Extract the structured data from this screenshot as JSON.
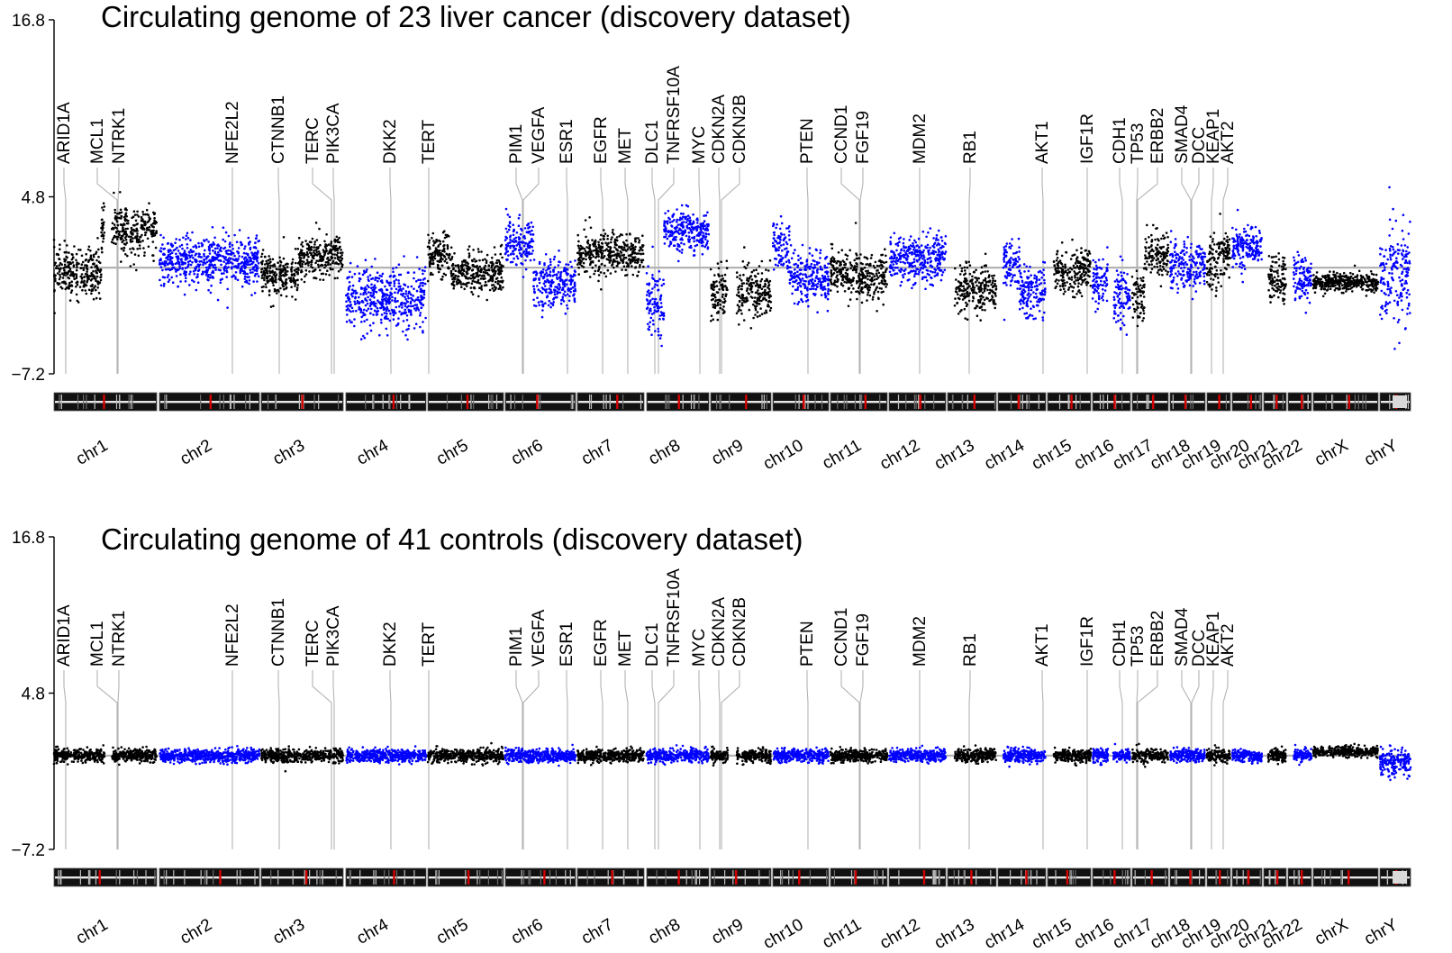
{
  "chart_data": [
    {
      "type": "scatter",
      "panel": "top",
      "title": "Circulating genome of 23 liver cancer (discovery dataset)",
      "ylim": [
        -7.2,
        16.8
      ],
      "yticks": [
        "16.8",
        "4.8",
        "−7.2"
      ],
      "baseline": 0,
      "chromosomes": [
        {
          "name": "chr1",
          "segments": [
            {
              "len": 0.46,
              "level": -0.3,
              "sd": 0.8
            },
            {
              "len": 0.54,
              "level": 2.5,
              "sd": 0.8
            }
          ]
        },
        {
          "name": "chr2",
          "segments": [
            {
              "len": 1.0,
              "level": 0.5,
              "sd": 0.8
            }
          ]
        },
        {
          "name": "chr3",
          "segments": [
            {
              "len": 0.45,
              "level": -0.4,
              "sd": 0.7
            },
            {
              "len": 0.55,
              "level": 0.7,
              "sd": 0.7
            }
          ]
        },
        {
          "name": "chr4",
          "segments": [
            {
              "len": 1.0,
              "level": -2.2,
              "sd": 1.0
            }
          ]
        },
        {
          "name": "chr5",
          "segments": [
            {
              "len": 0.3,
              "level": 0.9,
              "sd": 0.7
            },
            {
              "len": 0.7,
              "level": -0.3,
              "sd": 0.7
            }
          ]
        },
        {
          "name": "chr6",
          "segments": [
            {
              "len": 0.4,
              "level": 1.6,
              "sd": 0.8
            },
            {
              "len": 0.6,
              "level": -1.1,
              "sd": 0.8
            }
          ]
        },
        {
          "name": "chr7",
          "segments": [
            {
              "len": 1.0,
              "level": 0.9,
              "sd": 0.7
            }
          ]
        },
        {
          "name": "chr8",
          "segments": [
            {
              "len": 0.28,
              "level": -2.4,
              "sd": 1.2
            },
            {
              "len": 0.72,
              "level": 2.5,
              "sd": 0.7
            }
          ]
        },
        {
          "name": "chr9",
          "segments": [
            {
              "len": 0.36,
              "level": -1.6,
              "sd": 0.9
            },
            {
              "len": 0.64,
              "level": -1.6,
              "sd": 0.9
            }
          ]
        },
        {
          "name": "chr10",
          "segments": [
            {
              "len": 0.3,
              "level": 1.4,
              "sd": 0.8
            },
            {
              "len": 0.7,
              "level": -0.7,
              "sd": 0.8
            }
          ]
        },
        {
          "name": "chr11",
          "segments": [
            {
              "len": 0.5,
              "level": -0.4,
              "sd": 0.8
            },
            {
              "len": 0.5,
              "level": -0.7,
              "sd": 0.8
            }
          ]
        },
        {
          "name": "chr12",
          "segments": [
            {
              "len": 1.0,
              "level": 0.6,
              "sd": 0.8
            }
          ]
        },
        {
          "name": "chr13",
          "segments": [
            {
              "len": 1.0,
              "level": -1.4,
              "sd": 0.8
            }
          ]
        },
        {
          "name": "chr14",
          "segments": [
            {
              "len": 0.45,
              "level": 0.3,
              "sd": 0.8
            },
            {
              "len": 0.55,
              "level": -1.6,
              "sd": 0.9
            }
          ]
        },
        {
          "name": "chr15",
          "segments": [
            {
              "len": 1.0,
              "level": -0.3,
              "sd": 0.7
            }
          ]
        },
        {
          "name": "chr16",
          "segments": [
            {
              "len": 0.45,
              "level": -0.9,
              "sd": 0.8
            },
            {
              "len": 0.55,
              "level": -2.0,
              "sd": 1.0
            }
          ]
        },
        {
          "name": "chr17",
          "segments": [
            {
              "len": 0.35,
              "level": -1.8,
              "sd": 1.0
            },
            {
              "len": 0.65,
              "level": 0.9,
              "sd": 0.8
            }
          ]
        },
        {
          "name": "chr18",
          "segments": [
            {
              "len": 1.0,
              "level": 0.1,
              "sd": 0.8
            }
          ]
        },
        {
          "name": "chr19",
          "segments": [
            {
              "len": 0.5,
              "level": 0.1,
              "sd": 0.8
            },
            {
              "len": 0.5,
              "level": 1.0,
              "sd": 0.8
            }
          ]
        },
        {
          "name": "chr20",
          "segments": [
            {
              "len": 1.0,
              "level": 1.4,
              "sd": 0.7
            }
          ]
        },
        {
          "name": "chr21",
          "segments": [
            {
              "len": 1.0,
              "level": -0.8,
              "sd": 0.8
            }
          ]
        },
        {
          "name": "chr22",
          "segments": [
            {
              "len": 1.0,
              "level": -0.6,
              "sd": 0.8
            }
          ]
        },
        {
          "name": "chrX",
          "segments": [
            {
              "len": 1.0,
              "level": -1.0,
              "sd": 0.3
            }
          ]
        },
        {
          "name": "chrY",
          "segments": [
            {
              "len": 1.0,
              "level": -0.5,
              "sd": 1.8
            }
          ]
        }
      ]
    },
    {
      "type": "scatter",
      "panel": "bottom",
      "title": "Circulating genome of 41 controls (discovery dataset)",
      "ylim": [
        -7.2,
        16.8
      ],
      "yticks": [
        "16.8",
        "4.8",
        "−7.2"
      ],
      "baseline": 0,
      "chromosomes": [
        {
          "name": "chr1",
          "segments": [
            {
              "len": 1.0,
              "level": 0,
              "sd": 0.25
            }
          ]
        },
        {
          "name": "chr2",
          "segments": [
            {
              "len": 1.0,
              "level": 0,
              "sd": 0.25
            }
          ]
        },
        {
          "name": "chr3",
          "segments": [
            {
              "len": 1.0,
              "level": 0,
              "sd": 0.25
            }
          ]
        },
        {
          "name": "chr4",
          "segments": [
            {
              "len": 1.0,
              "level": 0,
              "sd": 0.25
            }
          ]
        },
        {
          "name": "chr5",
          "segments": [
            {
              "len": 1.0,
              "level": 0,
              "sd": 0.25
            }
          ]
        },
        {
          "name": "chr6",
          "segments": [
            {
              "len": 1.0,
              "level": 0,
              "sd": 0.25
            }
          ]
        },
        {
          "name": "chr7",
          "segments": [
            {
              "len": 1.0,
              "level": 0,
              "sd": 0.25
            }
          ]
        },
        {
          "name": "chr8",
          "segments": [
            {
              "len": 1.0,
              "level": 0,
              "sd": 0.25
            }
          ]
        },
        {
          "name": "chr9",
          "segments": [
            {
              "len": 1.0,
              "level": 0,
              "sd": 0.25
            }
          ]
        },
        {
          "name": "chr10",
          "segments": [
            {
              "len": 1.0,
              "level": 0,
              "sd": 0.25
            }
          ]
        },
        {
          "name": "chr11",
          "segments": [
            {
              "len": 1.0,
              "level": 0,
              "sd": 0.25
            }
          ]
        },
        {
          "name": "chr12",
          "segments": [
            {
              "len": 1.0,
              "level": 0,
              "sd": 0.25
            }
          ]
        },
        {
          "name": "chr13",
          "segments": [
            {
              "len": 1.0,
              "level": 0,
              "sd": 0.25
            }
          ]
        },
        {
          "name": "chr14",
          "segments": [
            {
              "len": 1.0,
              "level": 0,
              "sd": 0.25
            }
          ]
        },
        {
          "name": "chr15",
          "segments": [
            {
              "len": 1.0,
              "level": 0,
              "sd": 0.25
            }
          ]
        },
        {
          "name": "chr16",
          "segments": [
            {
              "len": 1.0,
              "level": 0,
              "sd": 0.25
            }
          ]
        },
        {
          "name": "chr17",
          "segments": [
            {
              "len": 1.0,
              "level": 0,
              "sd": 0.25
            }
          ]
        },
        {
          "name": "chr18",
          "segments": [
            {
              "len": 1.0,
              "level": 0,
              "sd": 0.25
            }
          ]
        },
        {
          "name": "chr19",
          "segments": [
            {
              "len": 1.0,
              "level": 0,
              "sd": 0.25
            }
          ]
        },
        {
          "name": "chr20",
          "segments": [
            {
              "len": 1.0,
              "level": 0,
              "sd": 0.25
            }
          ]
        },
        {
          "name": "chr21",
          "segments": [
            {
              "len": 1.0,
              "level": 0,
              "sd": 0.25
            }
          ]
        },
        {
          "name": "chr22",
          "segments": [
            {
              "len": 1.0,
              "level": 0,
              "sd": 0.25
            }
          ]
        },
        {
          "name": "chrX",
          "segments": [
            {
              "len": 1.0,
              "level": 0.3,
              "sd": 0.2
            }
          ]
        },
        {
          "name": "chrY",
          "segments": [
            {
              "len": 1.0,
              "level": -0.5,
              "sd": 0.5
            }
          ]
        }
      ]
    }
  ],
  "genes": [
    {
      "name": "ARID1A",
      "chrom": "chr1",
      "pos": 0.08
    },
    {
      "name": "MCL1",
      "chrom": "chr1",
      "pos": 0.6
    },
    {
      "name": "NTRK1",
      "chrom": "chr1",
      "pos": 0.62
    },
    {
      "name": "NFE2L2",
      "chrom": "chr2",
      "pos": 0.72
    },
    {
      "name": "CTNNB1",
      "chrom": "chr3",
      "pos": 0.2
    },
    {
      "name": "TERC",
      "chrom": "chr3",
      "pos": 0.9
    },
    {
      "name": "PIK3CA",
      "chrom": "chr3",
      "pos": 0.92
    },
    {
      "name": "DKK2",
      "chrom": "chr4",
      "pos": 0.55
    },
    {
      "name": "TERT",
      "chrom": "chr5",
      "pos": 0.01
    },
    {
      "name": "PIM1",
      "chrom": "chr6",
      "pos": 0.23
    },
    {
      "name": "VEGFA",
      "chrom": "chr6",
      "pos": 0.25
    },
    {
      "name": "ESR1",
      "chrom": "chr6",
      "pos": 0.86
    },
    {
      "name": "EGFR",
      "chrom": "chr7",
      "pos": 0.35
    },
    {
      "name": "MET",
      "chrom": "chr7",
      "pos": 0.73
    },
    {
      "name": "DLC1",
      "chrom": "chr8",
      "pos": 0.1
    },
    {
      "name": "TNFRSF10A",
      "chrom": "chr8",
      "pos": 0.16
    },
    {
      "name": "MYC",
      "chrom": "chr8",
      "pos": 0.86
    },
    {
      "name": "CDKN2A",
      "chrom": "chr9",
      "pos": 0.16
    },
    {
      "name": "CDKN2B",
      "chrom": "chr9",
      "pos": 0.18
    },
    {
      "name": "PTEN",
      "chrom": "chr10",
      "pos": 0.65
    },
    {
      "name": "CCND1",
      "chrom": "chr11",
      "pos": 0.5
    },
    {
      "name": "FGF19",
      "chrom": "chr11",
      "pos": 0.52
    },
    {
      "name": "MDM2",
      "chrom": "chr12",
      "pos": 0.5
    },
    {
      "name": "RB1",
      "chrom": "chr13",
      "pos": 0.4
    },
    {
      "name": "AKT1",
      "chrom": "chr14",
      "pos": 0.96
    },
    {
      "name": "IGF1R",
      "chrom": "chr15",
      "pos": 0.96
    },
    {
      "name": "CDH1",
      "chrom": "chr16",
      "pos": 0.75
    },
    {
      "name": "TP53",
      "chrom": "chr17",
      "pos": 0.1
    },
    {
      "name": "ERBB2",
      "chrom": "chr17",
      "pos": 0.47
    },
    {
      "name": "SMAD4",
      "chrom": "chr18",
      "pos": 0.6
    },
    {
      "name": "DCC",
      "chrom": "chr18",
      "pos": 0.62
    },
    {
      "name": "KEAP1",
      "chrom": "chr19",
      "pos": 0.1
    },
    {
      "name": "AKT2",
      "chrom": "chr19",
      "pos": 0.65
    }
  ],
  "colors": {
    "series_dark": "#000000",
    "series_blue": "#0000ff",
    "baseline": "#b3b3b3",
    "gene_line": "#b3b3b3",
    "centromere": "#d40000"
  }
}
